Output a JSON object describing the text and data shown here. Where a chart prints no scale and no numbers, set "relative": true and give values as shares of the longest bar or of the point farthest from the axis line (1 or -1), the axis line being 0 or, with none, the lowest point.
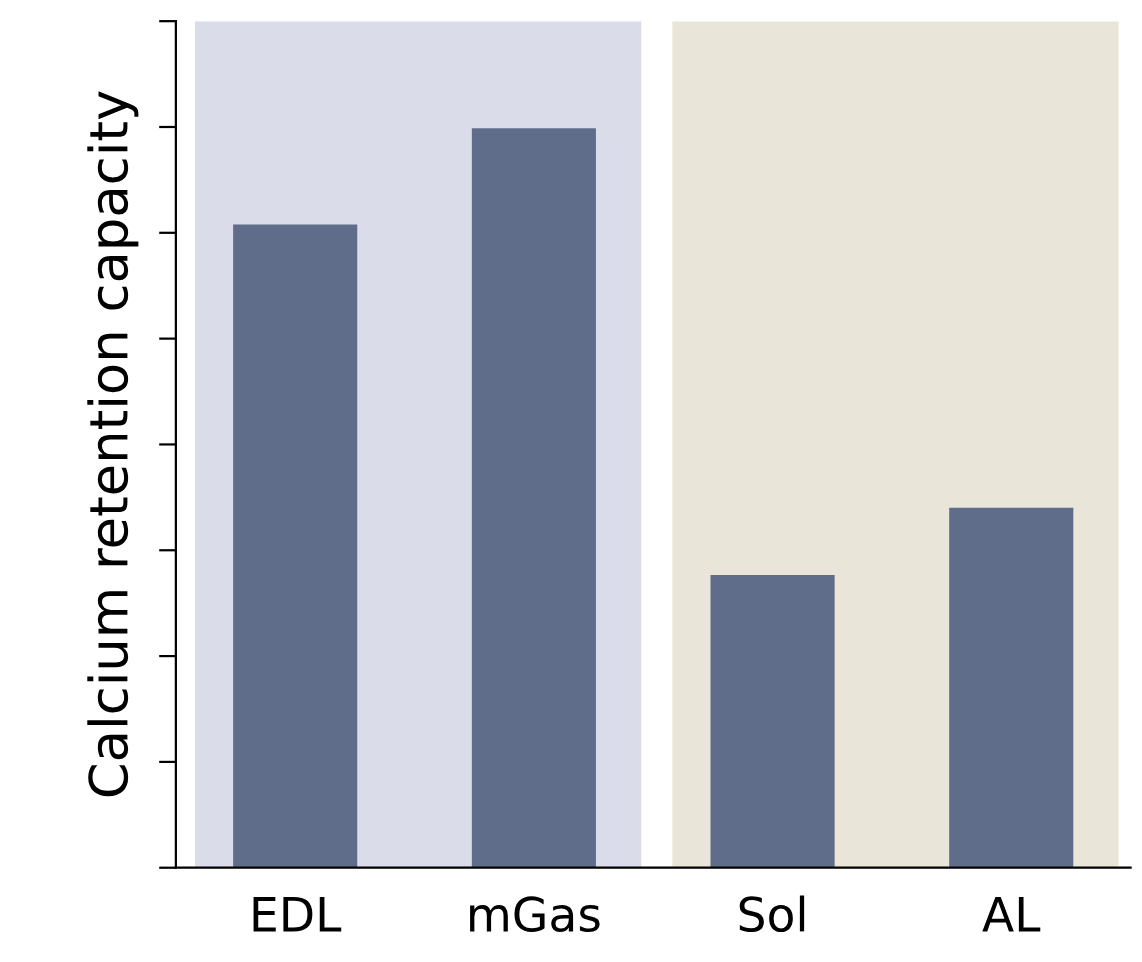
{
  "chart_data": {
    "type": "bar",
    "ylabel": "Calcium retention capacity",
    "relative": true,
    "categories": [
      "EDL",
      "mGas",
      "Sol",
      "AL"
    ],
    "values": [
      0.87,
      1,
      0.396,
      0.487
    ],
    "color": "#5f6d8a",
    "bands": [
      {
        "axis": "x",
        "from": "EDL",
        "to": "mGas",
        "color": "#dadde9"
      },
      {
        "axis": "x",
        "from": "Sol",
        "to": "AL",
        "color": "#e9e6d9"
      }
    ],
    "grid": false,
    "legend": false
  }
}
